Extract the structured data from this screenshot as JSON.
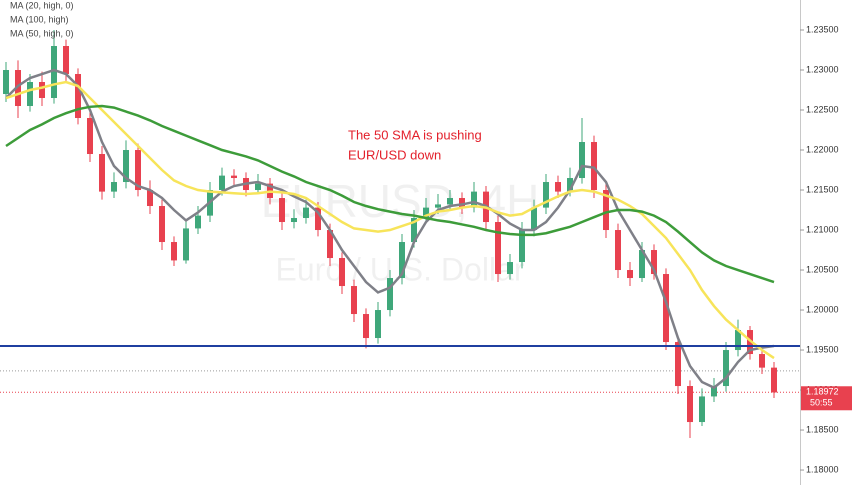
{
  "chart_data": {
    "type": "candlestick",
    "watermark": [
      "EURUSD, 4H",
      "Euro / U.S. Dollar"
    ],
    "annotation": [
      "The 50 SMA is pushing",
      "EUR/USD down"
    ],
    "annotation_color": "#e3202b",
    "ylim": [
      1.17813,
      1.23875
    ],
    "yticks": [
      {
        "value": 1.18,
        "label": "1.18000"
      },
      {
        "value": 1.185,
        "label": "1.18500"
      },
      {
        "value": 1.19,
        "label": "1.19000"
      },
      {
        "value": 1.195,
        "label": "1.19500"
      },
      {
        "value": 1.2,
        "label": "1.20000"
      },
      {
        "value": 1.205,
        "label": "1.20500"
      },
      {
        "value": 1.21,
        "label": "1.21000"
      },
      {
        "value": 1.215,
        "label": "1.21500"
      },
      {
        "value": 1.22,
        "label": "1.22000"
      },
      {
        "value": 1.225,
        "label": "1.22500"
      },
      {
        "value": 1.23,
        "label": "1.23000"
      },
      {
        "value": 1.235,
        "label": "1.23500"
      }
    ],
    "up_color": "#3fa77a",
    "down_color": "#e8414f",
    "candles": {
      "open": [
        1.227,
        1.23,
        1.2255,
        1.2285,
        1.2265,
        1.233,
        1.2295,
        1.224,
        1.2195,
        1.2148,
        1.216,
        1.22,
        1.215,
        1.213,
        1.2085,
        1.2062,
        1.2102,
        1.2118,
        1.215,
        1.2168,
        1.2165,
        1.215,
        1.2158,
        1.214,
        1.211,
        1.2115,
        1.2128,
        1.21,
        1.2065,
        1.203,
        1.1995,
        1.1965,
        1.2,
        1.204,
        1.2085,
        1.2115,
        1.2128,
        1.2132,
        1.214,
        1.2128,
        1.2148,
        1.211,
        1.2045,
        1.206,
        1.21,
        1.2128,
        1.216,
        1.2148,
        1.2165,
        1.221,
        1.215,
        1.21,
        1.205,
        1.204,
        1.2075,
        1.2045,
        1.196,
        1.1905,
        1.186,
        1.1892,
        1.1905,
        1.195,
        1.1975,
        1.1945,
        1.1928
      ],
      "high": [
        1.231,
        1.2312,
        1.2295,
        1.2298,
        1.235,
        1.2338,
        1.2302,
        1.225,
        1.2205,
        1.2172,
        1.2212,
        1.2208,
        1.2162,
        1.2138,
        1.2092,
        1.2112,
        1.213,
        1.216,
        1.2178,
        1.2176,
        1.2172,
        1.217,
        1.2165,
        1.2148,
        1.2126,
        1.2138,
        1.2135,
        1.2108,
        1.2072,
        1.2038,
        1.2002,
        1.201,
        1.205,
        1.2095,
        1.2125,
        1.214,
        1.2145,
        1.215,
        1.2147,
        1.216,
        1.2155,
        1.2118,
        1.207,
        1.211,
        1.2138,
        1.217,
        1.2168,
        1.2178,
        1.224,
        1.2218,
        1.2158,
        1.2108,
        1.206,
        1.2085,
        1.2082,
        1.2052,
        1.1968,
        1.1912,
        1.1902,
        1.1915,
        1.196,
        1.1988,
        1.198,
        1.1952,
        1.1935
      ],
      "low": [
        1.226,
        1.224,
        1.2248,
        1.2255,
        1.2258,
        1.2285,
        1.2232,
        1.2185,
        1.2138,
        1.214,
        1.2152,
        1.2142,
        1.212,
        1.2075,
        1.2055,
        1.2058,
        1.2095,
        1.211,
        1.2143,
        1.2155,
        1.2142,
        1.2145,
        1.2132,
        1.21,
        1.2102,
        1.2108,
        1.2092,
        1.2055,
        1.202,
        1.1985,
        1.1952,
        1.1958,
        1.1992,
        1.2032,
        1.2078,
        1.2108,
        1.212,
        1.2125,
        1.212,
        1.2122,
        1.21,
        1.2035,
        1.2038,
        1.2052,
        1.2092,
        1.212,
        1.214,
        1.2142,
        1.2158,
        1.214,
        1.209,
        1.204,
        1.203,
        1.2035,
        1.2038,
        1.195,
        1.1895,
        1.184,
        1.1855,
        1.1885,
        1.1898,
        1.1942,
        1.1938,
        1.192,
        1.189
      ],
      "close": [
        1.23,
        1.2255,
        1.2285,
        1.2265,
        1.233,
        1.2295,
        1.224,
        1.2195,
        1.2148,
        1.216,
        1.22,
        1.215,
        1.213,
        1.2085,
        1.2062,
        1.2102,
        1.2118,
        1.215,
        1.2168,
        1.2165,
        1.215,
        1.2158,
        1.214,
        1.211,
        1.2115,
        1.2128,
        1.21,
        1.2065,
        1.203,
        1.1995,
        1.1965,
        1.2,
        1.204,
        1.2085,
        1.2115,
        1.2128,
        1.2132,
        1.214,
        1.2128,
        1.2148,
        1.211,
        1.2045,
        1.206,
        1.21,
        1.2128,
        1.216,
        1.2148,
        1.2165,
        1.221,
        1.215,
        1.21,
        1.205,
        1.204,
        1.2075,
        1.2045,
        1.196,
        1.1905,
        1.186,
        1.1892,
        1.1905,
        1.195,
        1.1975,
        1.1945,
        1.1928,
        1.1897
      ]
    },
    "series": [
      {
        "name": "MA (20, high, 0)",
        "color": "#7f8088",
        "values": [
          1.2265,
          1.228,
          1.229,
          1.2295,
          1.23,
          1.2295,
          1.228,
          1.225,
          1.221,
          1.218,
          1.2165,
          1.2155,
          1.215,
          1.214,
          1.2125,
          1.2112,
          1.2122,
          1.2135,
          1.2148,
          1.2155,
          1.2158,
          1.216,
          1.2155,
          1.215,
          1.2142,
          1.2135,
          1.2122,
          1.21,
          1.2075,
          1.2055,
          1.2035,
          1.2022,
          1.2028,
          1.2045,
          1.2085,
          1.211,
          1.2125,
          1.213,
          1.2132,
          1.2135,
          1.213,
          1.212,
          1.2108,
          1.21,
          1.21,
          1.211,
          1.2128,
          1.215,
          1.218,
          1.2178,
          1.216,
          1.2125,
          1.21,
          1.2075,
          1.205,
          1.201,
          1.1965,
          1.193,
          1.191,
          1.1903,
          1.1915,
          1.1935,
          1.195,
          1.1953,
          1.1955
        ]
      },
      {
        "name": "MA (100, high)",
        "color": "#f7e45a",
        "values": [
          1.2265,
          1.227,
          1.2275,
          1.2278,
          1.2282,
          1.2285,
          1.228,
          1.2265,
          1.225,
          1.2235,
          1.222,
          1.2205,
          1.219,
          1.2175,
          1.2162,
          1.2155,
          1.215,
          1.2148,
          1.2147,
          1.2146,
          1.2145,
          1.2146,
          1.2148,
          1.2147,
          1.2145,
          1.214,
          1.213,
          1.212,
          1.211,
          1.2102,
          1.21,
          1.2098,
          1.21,
          1.2105,
          1.211,
          1.2118,
          1.2123,
          1.2125,
          1.2128,
          1.213,
          1.2128,
          1.2122,
          1.2118,
          1.212,
          1.2128,
          1.2135,
          1.2142,
          1.2148,
          1.215,
          1.2148,
          1.2143,
          1.2138,
          1.213,
          1.212,
          1.2105,
          1.209,
          1.207,
          1.205,
          1.2025,
          1.2005,
          1.1988,
          1.1975,
          1.1962,
          1.195,
          1.194
        ]
      },
      {
        "name": "MA (50, high, 0)",
        "color": "#3d9c3a",
        "values": [
          1.2205,
          1.2215,
          1.2225,
          1.2232,
          1.224,
          1.2246,
          1.2251,
          1.2254,
          1.2255,
          1.2253,
          1.2248,
          1.2243,
          1.2237,
          1.223,
          1.2224,
          1.2218,
          1.2212,
          1.2206,
          1.22,
          1.2196,
          1.2192,
          1.2187,
          1.218,
          1.2173,
          1.2167,
          1.216,
          1.2155,
          1.215,
          1.2143,
          1.2135,
          1.213,
          1.2126,
          1.2123,
          1.212,
          1.2118,
          1.2115,
          1.2112,
          1.211,
          1.2107,
          1.2104,
          1.21,
          1.2097,
          1.2095,
          1.2094,
          1.2094,
          1.2096,
          1.21,
          1.2104,
          1.211,
          1.2116,
          1.2122,
          1.2125,
          1.2125,
          1.2123,
          1.2118,
          1.211,
          1.2098,
          1.2085,
          1.2072,
          1.2062,
          1.2055,
          1.205,
          1.2045,
          1.204,
          1.2035
        ]
      }
    ],
    "support_line": {
      "value": 1.1955,
      "color": "#1f3fa0"
    },
    "dotted_lines": [
      {
        "value": 1.1924,
        "color": "#9a9a9a"
      },
      {
        "value": 1.18972,
        "color": "#e8414f"
      }
    ],
    "price_label": {
      "value": 1.18972,
      "label": "1.18972",
      "countdown": "50:55",
      "color": "#e8414f"
    }
  }
}
